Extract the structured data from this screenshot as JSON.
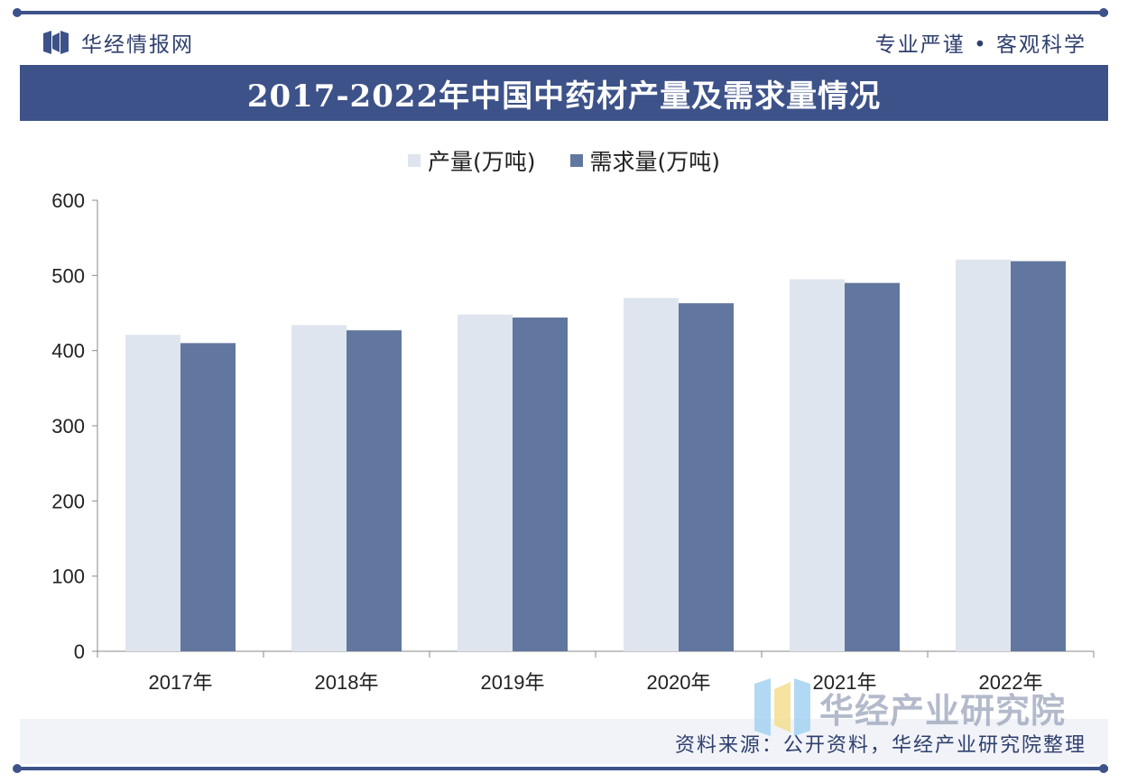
{
  "header": {
    "brand_name": "华经情报网",
    "slogan": "专业严谨 • 客观科学"
  },
  "title": "2017-2022年中国中药材产量及需求量情况",
  "footer": {
    "source": "资料来源：公开资料，华经产业研究院整理"
  },
  "watermark": {
    "name": "华经产业研究院"
  },
  "colors": {
    "brand_blue": "#3d5289",
    "production": "#dfe5ef",
    "demand": "#61779f"
  },
  "chart_data": {
    "type": "bar",
    "categories": [
      "2017年",
      "2018年",
      "2019年",
      "2020年",
      "2021年",
      "2022年"
    ],
    "series": [
      {
        "name": "产量(万吨)",
        "values": [
          421,
          434,
          448,
          470,
          495,
          521
        ],
        "color": "#dfe5ef"
      },
      {
        "name": "需求量(万吨)",
        "values": [
          410,
          427,
          444,
          463,
          490,
          519
        ],
        "color": "#61779f"
      }
    ],
    "ylim": [
      0,
      600
    ],
    "yticks": [
      0,
      100,
      200,
      300,
      400,
      500,
      600
    ],
    "grid": false,
    "legend_position": "top-center"
  }
}
